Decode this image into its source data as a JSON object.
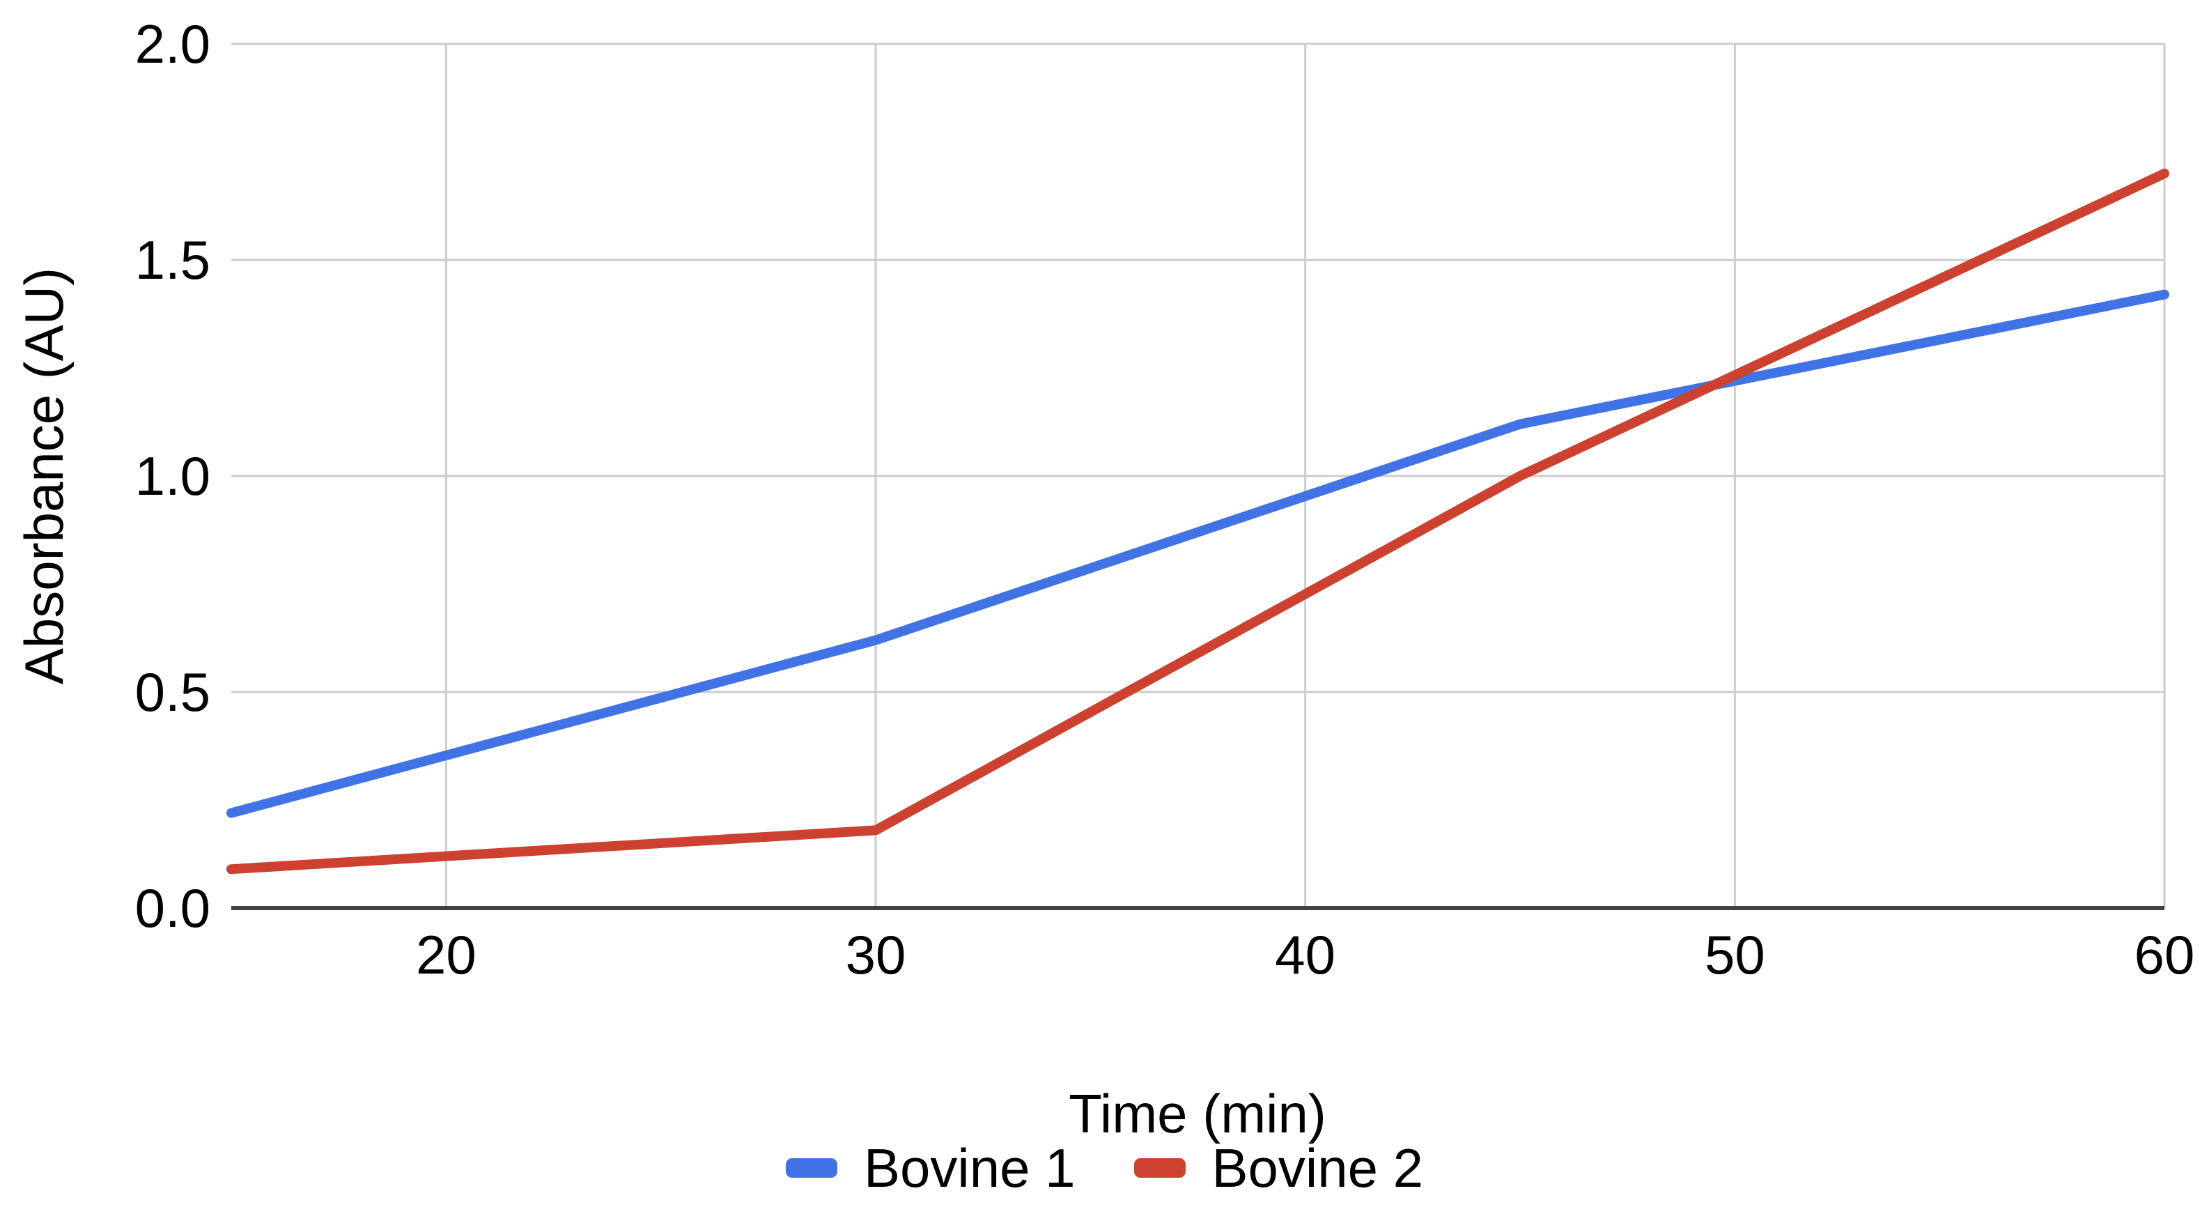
{
  "chart_data": {
    "type": "line",
    "title": "",
    "xlabel": "Time (min)",
    "ylabel": "Absorbance (AU)",
    "x": [
      15,
      30,
      45,
      60
    ],
    "series": [
      {
        "name": "Bovine 1",
        "color": "#4173E6",
        "values": [
          0.22,
          0.62,
          1.12,
          1.42
        ]
      },
      {
        "name": "Bovine 2",
        "color": "#CD4130",
        "values": [
          0.09,
          0.18,
          1.0,
          1.7
        ]
      }
    ],
    "xlim": [
      15,
      60
    ],
    "ylim": [
      0.0,
      2.0
    ],
    "x_ticks": [
      {
        "value": 20,
        "label": "20"
      },
      {
        "value": 30,
        "label": "30"
      },
      {
        "value": 40,
        "label": "40"
      },
      {
        "value": 50,
        "label": "50"
      },
      {
        "value": 60,
        "label": "60"
      }
    ],
    "y_ticks": [
      {
        "value": 0.0,
        "label": "0.0"
      },
      {
        "value": 0.5,
        "label": "0.5"
      },
      {
        "value": 1.0,
        "label": "1.0"
      },
      {
        "value": 1.5,
        "label": "1.5"
      },
      {
        "value": 2.0,
        "label": "2.0"
      }
    ],
    "grid": true,
    "legend_position": "bottom",
    "grid_color": "#cccccc",
    "axis_line_color": "#424242",
    "text_color": "#000000",
    "background": "#ffffff"
  }
}
